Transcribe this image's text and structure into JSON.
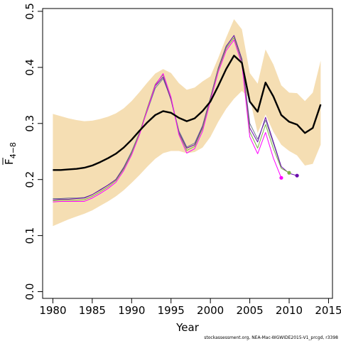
{
  "chart_data": {
    "type": "line",
    "xlabel": "Year",
    "ylabel": "F",
    "ylabel_subscript": "4−8",
    "xlim": [
      1978.7,
      2015.5
    ],
    "ylim": [
      -0.012,
      0.505
    ],
    "x_ticks": [
      1980,
      1985,
      1990,
      1995,
      2000,
      2005,
      2010,
      2015
    ],
    "y_ticks": [
      0.0,
      0.1,
      0.2,
      0.3,
      0.4,
      0.5
    ],
    "x_tick_labels": [
      "1980",
      "1985",
      "1990",
      "1995",
      "2000",
      "2005",
      "2010",
      "2015"
    ],
    "y_tick_labels": [
      "0.0",
      "0.1",
      "0.2",
      "0.3",
      "0.4",
      "0.5"
    ],
    "colors": {
      "band": "#f5deb3",
      "estimate": "#000000",
      "retro1": "#ff00ff",
      "retro2": "#7cb342",
      "retro3": "#6a0dad",
      "retro4": "#708090"
    },
    "confidence_band": {
      "x": [
        1980,
        1981,
        1982,
        1983,
        1984,
        1985,
        1986,
        1987,
        1988,
        1989,
        1990,
        1991,
        1992,
        1993,
        1994,
        1995,
        1996,
        1997,
        1998,
        1999,
        2000,
        2001,
        2002,
        2003,
        2004,
        2005,
        2006,
        2007,
        2008,
        2009,
        2010,
        2011,
        2012,
        2013,
        2014
      ],
      "upper": [
        0.317,
        0.313,
        0.309,
        0.306,
        0.304,
        0.305,
        0.308,
        0.312,
        0.318,
        0.327,
        0.34,
        0.356,
        0.373,
        0.389,
        0.397,
        0.39,
        0.372,
        0.36,
        0.364,
        0.375,
        0.384,
        0.417,
        0.453,
        0.486,
        0.468,
        0.39,
        0.371,
        0.432,
        0.405,
        0.368,
        0.355,
        0.354,
        0.34,
        0.355,
        0.412
      ],
      "lower": [
        0.117,
        0.123,
        0.129,
        0.134,
        0.139,
        0.145,
        0.153,
        0.161,
        0.17,
        0.181,
        0.194,
        0.208,
        0.223,
        0.237,
        0.247,
        0.251,
        0.251,
        0.247,
        0.249,
        0.257,
        0.276,
        0.303,
        0.326,
        0.344,
        0.358,
        0.345,
        0.283,
        0.316,
        0.285,
        0.262,
        0.251,
        0.243,
        0.225,
        0.228,
        0.262
      ]
    },
    "series": [
      {
        "x": [
          1980,
          1981,
          1982,
          1983,
          1984,
          1985,
          1986,
          1987,
          1988,
          1989,
          1990,
          1991,
          1992,
          1993,
          1994,
          1995,
          1996,
          1997,
          1998,
          1999,
          2000,
          2001,
          2002,
          2003,
          2004,
          2005,
          2006,
          2007,
          2008,
          2009,
          2010,
          2011,
          2012,
          2013,
          2014
        ],
        "values": [
          0.217,
          0.217,
          0.218,
          0.219,
          0.221,
          0.225,
          0.231,
          0.238,
          0.246,
          0.257,
          0.271,
          0.287,
          0.302,
          0.315,
          0.322,
          0.319,
          0.31,
          0.304,
          0.309,
          0.322,
          0.339,
          0.367,
          0.397,
          0.421,
          0.408,
          0.339,
          0.321,
          0.373,
          0.348,
          0.315,
          0.303,
          0.298,
          0.283,
          0.292,
          0.334
        ]
      },
      {
        "x": [
          1980,
          1981,
          1982,
          1983,
          1984,
          1985,
          1986,
          1987,
          1988,
          1989,
          1990,
          1991,
          1992,
          1993,
          1994,
          1995,
          1996,
          1997,
          1998,
          1999,
          2000,
          2001,
          2002,
          2003,
          2004,
          2005,
          2006,
          2007,
          2008,
          2009
        ],
        "values": [
          0.16,
          0.161,
          0.161,
          0.161,
          0.161,
          0.167,
          0.175,
          0.184,
          0.195,
          0.216,
          0.244,
          0.28,
          0.325,
          0.368,
          0.389,
          0.347,
          0.28,
          0.247,
          0.255,
          0.286,
          0.34,
          0.392,
          0.43,
          0.449,
          0.406,
          0.276,
          0.246,
          0.284,
          0.238,
          0.203
        ]
      },
      {
        "x": [
          1980,
          1981,
          1982,
          1983,
          1984,
          1985,
          1986,
          1987,
          1988,
          1989,
          1990,
          1991,
          1992,
          1993,
          1994,
          1995,
          1996,
          1997,
          1998,
          1999,
          2000,
          2001,
          2002,
          2003,
          2004,
          2005,
          2006,
          2007,
          2008,
          2009,
          2010
        ],
        "values": [
          0.162,
          0.163,
          0.163,
          0.163,
          0.164,
          0.17,
          0.178,
          0.187,
          0.198,
          0.219,
          0.247,
          0.283,
          0.328,
          0.37,
          0.387,
          0.345,
          0.282,
          0.252,
          0.259,
          0.291,
          0.343,
          0.396,
          0.434,
          0.453,
          0.41,
          0.285,
          0.256,
          0.298,
          0.255,
          0.22,
          0.212
        ]
      },
      {
        "x": [
          1980,
          1981,
          1982,
          1983,
          1984,
          1985,
          1986,
          1987,
          1988,
          1989,
          1990,
          1991,
          1992,
          1993,
          1994,
          1995,
          1996,
          1997,
          1998,
          1999,
          2000,
          2001,
          2002,
          2003,
          2004,
          2005,
          2006,
          2007,
          2008,
          2009,
          2010,
          2011
        ],
        "values": [
          0.164,
          0.165,
          0.165,
          0.166,
          0.167,
          0.173,
          0.181,
          0.19,
          0.2,
          0.221,
          0.248,
          0.283,
          0.326,
          0.367,
          0.383,
          0.342,
          0.284,
          0.256,
          0.262,
          0.294,
          0.345,
          0.398,
          0.437,
          0.457,
          0.414,
          0.292,
          0.267,
          0.311,
          0.267,
          0.223,
          0.211,
          0.207
        ]
      },
      {
        "x": [
          1980,
          1981,
          1982,
          1983,
          1984,
          1985,
          1986,
          1987,
          1988,
          1989,
          1990,
          1991,
          1992,
          1993,
          1994,
          1995,
          1996,
          1997,
          1998,
          1999,
          2000,
          2001,
          2002,
          2003,
          2004,
          2005,
          2006,
          2007,
          2008,
          2009
        ],
        "values": [
          0.166,
          0.166,
          0.167,
          0.167,
          0.168,
          0.173,
          0.182,
          0.19,
          0.2,
          0.222,
          0.25,
          0.284,
          0.323,
          0.363,
          0.38,
          0.344,
          0.287,
          0.258,
          0.265,
          0.296,
          0.346,
          0.399,
          0.438,
          0.457,
          0.415,
          0.3,
          0.272,
          0.306,
          0.264,
          0.222
        ]
      }
    ],
    "terminal_points": [
      {
        "x": 2009,
        "y": 0.203,
        "color": "#ff00ff"
      },
      {
        "x": 2010,
        "y": 0.212,
        "color": "#7cb342"
      },
      {
        "x": 2011,
        "y": 0.207,
        "color": "#6a0dad"
      }
    ],
    "footer_text": "stockassessment.org, NEA-Mac-WGWIDE2015-V1_prcgd, r3398"
  }
}
